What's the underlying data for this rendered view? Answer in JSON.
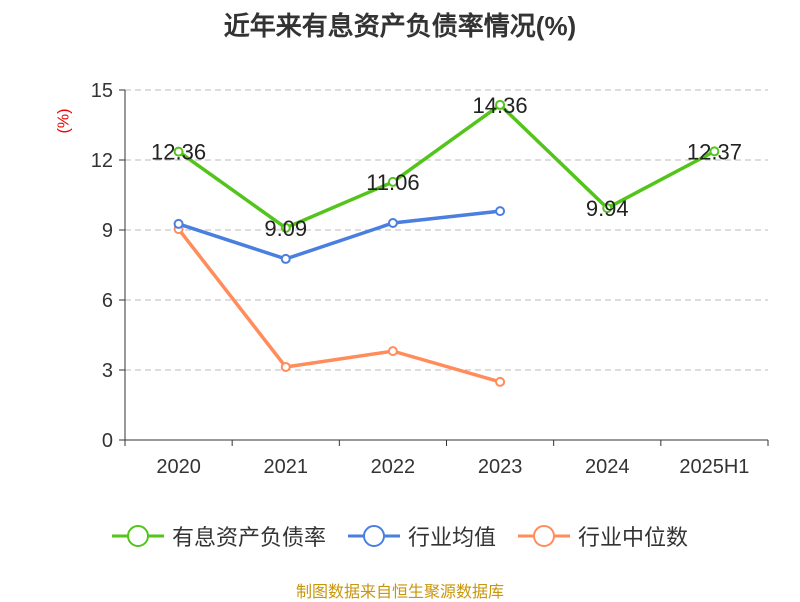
{
  "chart_data": {
    "type": "line",
    "title": "近年来有息资产负债率情况(%)",
    "ylabel": "(%)",
    "categories": [
      "2020",
      "2021",
      "2022",
      "2023",
      "2024",
      "2025H1"
    ],
    "ylim": [
      0,
      15
    ],
    "yticks": [
      0,
      3,
      6,
      9,
      12,
      15
    ],
    "grid": true,
    "legend_position": "bottom",
    "series": [
      {
        "name": "有息资产负债率",
        "color": "#52c41a",
        "values": [
          12.36,
          9.09,
          11.06,
          14.36,
          9.94,
          12.37
        ],
        "labels": [
          "12.36",
          "9.09",
          "11.06",
          "14.36",
          "9.94",
          "12.37"
        ]
      },
      {
        "name": "行业均值",
        "color": "#4a7fe0",
        "values": [
          9.26,
          7.76,
          9.3,
          9.81,
          null,
          null
        ]
      },
      {
        "name": "行业中位数",
        "color": "#ff8c5a",
        "values": [
          9.04,
          3.13,
          3.81,
          2.49,
          null,
          null
        ]
      }
    ]
  },
  "source": "制图数据来自恒生聚源数据库"
}
